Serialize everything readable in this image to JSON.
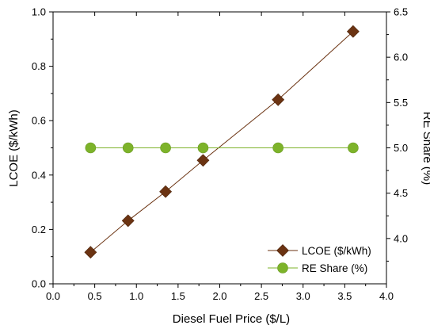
{
  "chart_data": {
    "type": "line",
    "title": "",
    "xlabel": "Diesel Fuel Price ($/L)",
    "ylabel": "LCOE ($/kWh)",
    "y2label": "RE Share (%)",
    "xlim": [
      0.0,
      4.0
    ],
    "ylim": [
      0.0,
      1.0
    ],
    "y2lim": [
      3.5,
      6.5
    ],
    "xticks": [
      "0.0",
      "0.5",
      "1.0",
      "1.5",
      "2.0",
      "2.5",
      "3.0",
      "3.5",
      "4.0"
    ],
    "yticks": [
      "0.0",
      "0.2",
      "0.4",
      "0.6",
      "0.8",
      "1.0"
    ],
    "y2ticks": [
      "4.0",
      "4.5",
      "5.0",
      "5.5",
      "6.0",
      "6.5"
    ],
    "grid": false,
    "legend_position": "bottom-right",
    "series": [
      {
        "name": "LCOE ($/kWh)",
        "axis": "left",
        "marker": "diamond",
        "color": "#6B3312",
        "x": [
          0.45,
          0.9,
          1.35,
          1.8,
          2.7,
          3.6
        ],
        "y": [
          0.116,
          0.232,
          0.339,
          0.454,
          0.677,
          0.928
        ]
      },
      {
        "name": "RE Share (%)",
        "axis": "right",
        "marker": "circle",
        "color": "#7DB32A",
        "x": [
          0.45,
          0.9,
          1.35,
          1.8,
          2.7,
          3.6
        ],
        "y": [
          5.0,
          5.0,
          5.0,
          5.0,
          5.0,
          5.0
        ]
      }
    ]
  }
}
